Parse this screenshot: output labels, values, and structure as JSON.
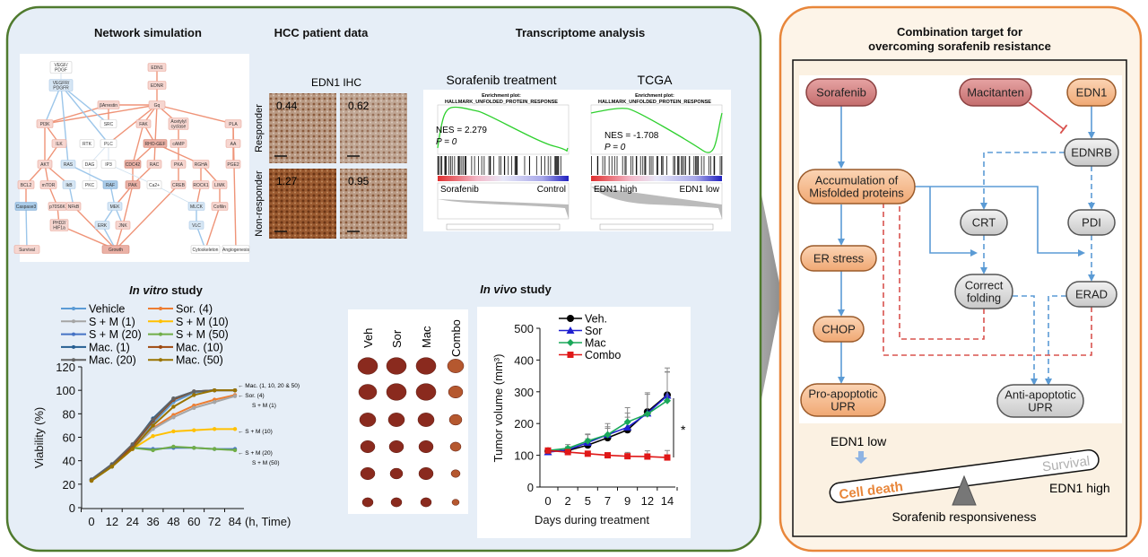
{
  "sections": {
    "network": "Network simulation",
    "hcc": "HCC patient data",
    "transcriptome": "Transcriptome analysis",
    "in_vitro_italic": "In vitro",
    "in_vivo_italic": "In vivo",
    "study_suffix": " study"
  },
  "network": {
    "nodes": [
      {
        "label": "VEGF/\nPDGF",
        "tone": "white"
      },
      {
        "label": "VEGFR/\nPDGFR",
        "tone": "blue"
      },
      {
        "label": "EDN1",
        "tone": "red"
      },
      {
        "label": "EDNR",
        "tone": "red"
      },
      {
        "label": "βArrestin",
        "tone": "red"
      },
      {
        "label": "Gq",
        "tone": "red"
      },
      {
        "label": "PI3K",
        "tone": "red"
      },
      {
        "label": "SRC",
        "tone": "white"
      },
      {
        "label": "FAK",
        "tone": "red"
      },
      {
        "label": "Acetylyl\ncyclase",
        "tone": "red"
      },
      {
        "label": "PLA",
        "tone": "red"
      },
      {
        "label": "ILK",
        "tone": "red"
      },
      {
        "label": "RTK",
        "tone": "white"
      },
      {
        "label": "PLC",
        "tone": "white"
      },
      {
        "label": "RHO-GEF",
        "tone": "red2"
      },
      {
        "label": "cAMP",
        "tone": "red"
      },
      {
        "label": "AA",
        "tone": "red"
      },
      {
        "label": "AKT",
        "tone": "red"
      },
      {
        "label": "RAS",
        "tone": "blue"
      },
      {
        "label": "DAG",
        "tone": "white"
      },
      {
        "label": "IP3",
        "tone": "white"
      },
      {
        "label": "CDC42",
        "tone": "red2"
      },
      {
        "label": "RAC",
        "tone": "red"
      },
      {
        "label": "PKA",
        "tone": "red"
      },
      {
        "label": "RGHA",
        "tone": "red"
      },
      {
        "label": "PGE2",
        "tone": "red"
      },
      {
        "label": "BCL2",
        "tone": "red"
      },
      {
        "label": "mTOR",
        "tone": "red"
      },
      {
        "label": "IkB",
        "tone": "blue"
      },
      {
        "label": "PKC",
        "tone": "white"
      },
      {
        "label": "RAF",
        "tone": "blue2"
      },
      {
        "label": "PAK",
        "tone": "red2"
      },
      {
        "label": "Ca2+",
        "tone": "white"
      },
      {
        "label": "CREB",
        "tone": "red"
      },
      {
        "label": "ROCK1",
        "tone": "red"
      },
      {
        "label": "LIMK",
        "tone": "red"
      },
      {
        "label": "Caspase3",
        "tone": "blue2"
      },
      {
        "label": "p70S6K",
        "tone": "red"
      },
      {
        "label": "NFkB",
        "tone": "red"
      },
      {
        "label": "MEK",
        "tone": "blue"
      },
      {
        "label": "MLCK",
        "tone": "blue"
      },
      {
        "label": "Cofilin",
        "tone": "red"
      },
      {
        "label": "PHD2/\nHIF1a",
        "tone": "red"
      },
      {
        "label": "ERK",
        "tone": "blue"
      },
      {
        "label": "JNK",
        "tone": "red"
      },
      {
        "label": "VLC",
        "tone": "blue"
      },
      {
        "label": "Survival",
        "tone": "red"
      },
      {
        "label": "Growth",
        "tone": "red2"
      },
      {
        "label": "Cytoskeleton",
        "tone": "white"
      },
      {
        "label": "Angiogenesis",
        "tone": "white"
      }
    ]
  },
  "ihc": {
    "title": "EDN1 IHC",
    "rows": [
      "Responder",
      "Non-responder"
    ],
    "scores": [
      "0.44",
      "0.62",
      "1.27",
      "0.95"
    ]
  },
  "gsea": [
    {
      "title": "Sorafenib treatment",
      "plot_title": "Enrichment plot:",
      "gene_set": "HALLMARK_UNFOLDED_PROTEIN_RESPONSE",
      "nes": "NES = 2.279",
      "p": "P = 0",
      "left": "Sorafenib",
      "right": "Control"
    },
    {
      "title": "TCGA",
      "plot_title": "Enrichment plot:",
      "gene_set": "HALLMARK_UNFOLDED_PROTEIN_RESPONSE",
      "nes": "NES = -1.708",
      "p": "P = 0",
      "left": "EDN1 high",
      "right": "EDN1 low"
    }
  ],
  "tumor_columns": [
    "Veh",
    "Sor",
    "Mac",
    "Combo"
  ],
  "chart_data": [
    {
      "type": "line",
      "title": "In vitro study",
      "xlabel": "(h, Time)",
      "ylabel": "Viability (%)",
      "x": [
        0,
        12,
        24,
        36,
        48,
        60,
        72,
        84
      ],
      "xticks": [
        "0",
        "12",
        "24",
        "36",
        "48",
        "60",
        "72",
        "84"
      ],
      "ylim": [
        0,
        120
      ],
      "yticks": [
        "0",
        "20",
        "40",
        "60",
        "80",
        "100",
        "120"
      ],
      "legend": "top",
      "series": [
        {
          "name": "Vehicle",
          "color": "#5b9bd5",
          "values": [
            24,
            37,
            53,
            72,
            90,
            98,
            100,
            100
          ]
        },
        {
          "name": "Sor. (4)",
          "color": "#ed7d31",
          "values": [
            23,
            35,
            50,
            68,
            79,
            87,
            92,
            96
          ]
        },
        {
          "name": "S + M (1)",
          "color": "#a5a5a5",
          "values": [
            23,
            35,
            50,
            67,
            77,
            85,
            90,
            95
          ]
        },
        {
          "name": "S + M (10)",
          "color": "#ffc000",
          "values": [
            23,
            35,
            50,
            61,
            65,
            66,
            67,
            67
          ]
        },
        {
          "name": "S + M (20)",
          "color": "#4472c4",
          "values": [
            24,
            35,
            51,
            50,
            51,
            51,
            50,
            50
          ]
        },
        {
          "name": "S + M (50)",
          "color": "#70ad47",
          "values": [
            23,
            35,
            51,
            49,
            52,
            51,
            50,
            49
          ]
        },
        {
          "name": "Mac. (1)",
          "color": "#255e91",
          "values": [
            24,
            37,
            53,
            76,
            93,
            99,
            100,
            100
          ]
        },
        {
          "name": "Mac. (10)",
          "color": "#9e480e",
          "values": [
            23,
            36,
            52,
            74,
            92,
            99,
            100,
            100
          ]
        },
        {
          "name": "Mac. (20)",
          "color": "#636363",
          "values": [
            24,
            37,
            54,
            75,
            93,
            99,
            100,
            100
          ]
        },
        {
          "name": "Mac. (50)",
          "color": "#997300",
          "values": [
            23,
            35,
            50,
            70,
            86,
            96,
            100,
            100
          ]
        }
      ],
      "annotations": [
        "← Mac. (1, 10, 20 & 50)",
        "← Sor. (4)",
        "S + M (1)",
        "← S + M (10)",
        "← S + M (20)",
        "S + M (50)"
      ]
    },
    {
      "type": "line",
      "title": "In vivo study",
      "xlabel": "Days during treatment",
      "ylabel": "Tumor volume (mm³)",
      "categories": [
        "0",
        "2",
        "5",
        "7",
        "9",
        "12",
        "14"
      ],
      "ylim": [
        0,
        500
      ],
      "yticks": [
        "0",
        "100",
        "200",
        "300",
        "400",
        "500"
      ],
      "legend": "top-left",
      "series": [
        {
          "name": "Veh.",
          "color": "#000000",
          "marker": "circle",
          "values": [
            113,
            115,
            132,
            155,
            180,
            237,
            290
          ],
          "err": [
            0,
            10,
            20,
            30,
            40,
            60,
            85
          ]
        },
        {
          "name": "Sor",
          "color": "#1f1fd0",
          "marker": "triangle",
          "values": [
            110,
            117,
            140,
            165,
            188,
            232,
            288
          ],
          "err": [
            0,
            10,
            25,
            35,
            45,
            60,
            75
          ]
        },
        {
          "name": "Mac",
          "color": "#1aa85a",
          "marker": "diamond",
          "values": [
            115,
            122,
            145,
            165,
            205,
            230,
            272
          ],
          "err": [
            0,
            12,
            22,
            25,
            45,
            0,
            90
          ]
        },
        {
          "name": "Combo",
          "color": "#e01818",
          "marker": "square",
          "values": [
            115,
            110,
            105,
            100,
            97,
            96,
            93
          ],
          "err": [
            0,
            0,
            0,
            0,
            12,
            18,
            22
          ]
        }
      ],
      "annotation": "*"
    }
  ],
  "mechanism": {
    "title_line1": "Combination target for",
    "title_line2": "overcoming sorafenib resistance",
    "nodes": {
      "sorafenib": "Sorafenib",
      "macitanten": "Macitanten",
      "edn1": "EDN1",
      "ednrb": "EDNRB",
      "accumulation": "Accumulation of\nMisfolded proteins",
      "crt": "CRT",
      "pdi": "PDI",
      "er_stress": "ER stress",
      "correct_folding": "Correct\nfolding",
      "erad": "ERAD",
      "chop": "CHOP",
      "pro_apoptotic": "Pro-apoptotic\nUPR",
      "anti_apoptotic": "Anti-apoptotic\nUPR"
    },
    "balance": {
      "edn1_low": "EDN1 low",
      "edn1_high": "EDN1 high",
      "cell_death": "Cell death",
      "survival": "Survival",
      "caption": "Sorafenib responsiveness"
    }
  }
}
